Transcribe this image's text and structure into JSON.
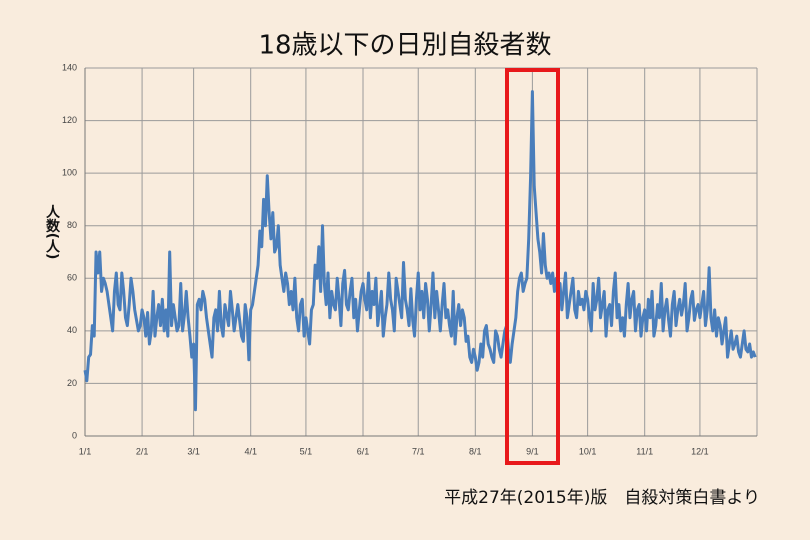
{
  "chart_data": {
    "type": "line",
    "title": "18歳以下の日別自殺者数",
    "y_label": "人数(人)",
    "source": "平成27年(2015年)版　自殺対策白書より",
    "xlim": [
      1,
      366
    ],
    "xticks": [
      {
        "value": 1,
        "label": "1/1"
      },
      {
        "value": 32,
        "label": "2/1"
      },
      {
        "value": 60,
        "label": "3/1"
      },
      {
        "value": 91,
        "label": "4/1"
      },
      {
        "value": 121,
        "label": "5/1"
      },
      {
        "value": 152,
        "label": "6/1"
      },
      {
        "value": 182,
        "label": "7/1"
      },
      {
        "value": 213,
        "label": "8/1"
      },
      {
        "value": 244,
        "label": "9/1"
      },
      {
        "value": 274,
        "label": "10/1"
      },
      {
        "value": 305,
        "label": "11/1"
      },
      {
        "value": 335,
        "label": "12/1"
      },
      {
        "value": 366,
        "label": ""
      }
    ],
    "ylim": [
      0,
      140
    ],
    "yticks": [
      0,
      20,
      40,
      60,
      80,
      100,
      120,
      140
    ],
    "grid": true,
    "x": [
      1,
      2,
      3,
      4,
      5,
      6,
      7,
      8,
      9,
      10,
      11,
      12,
      13,
      14,
      15,
      16,
      17,
      18,
      19,
      20,
      21,
      22,
      23,
      24,
      25,
      26,
      27,
      28,
      29,
      30,
      31,
      32,
      33,
      34,
      35,
      36,
      37,
      38,
      39,
      40,
      41,
      42,
      43,
      44,
      45,
      46,
      47,
      48,
      49,
      50,
      51,
      52,
      53,
      54,
      55,
      56,
      57,
      58,
      59,
      60,
      61,
      62,
      63,
      64,
      65,
      66,
      67,
      68,
      69,
      70,
      71,
      72,
      73,
      74,
      75,
      76,
      77,
      78,
      79,
      80,
      81,
      82,
      83,
      84,
      85,
      86,
      87,
      88,
      89,
      90,
      91,
      92,
      93,
      94,
      95,
      96,
      97,
      98,
      99,
      100,
      101,
      102,
      103,
      104,
      105,
      106,
      107,
      108,
      109,
      110,
      111,
      112,
      113,
      114,
      115,
      116,
      117,
      118,
      119,
      120,
      121,
      122,
      123,
      124,
      125,
      126,
      127,
      128,
      129,
      130,
      131,
      132,
      133,
      134,
      135,
      136,
      137,
      138,
      139,
      140,
      141,
      142,
      143,
      144,
      145,
      146,
      147,
      148,
      149,
      150,
      151,
      152,
      153,
      154,
      155,
      156,
      157,
      158,
      159,
      160,
      161,
      162,
      163,
      164,
      165,
      166,
      167,
      168,
      169,
      170,
      171,
      172,
      173,
      174,
      175,
      176,
      177,
      178,
      179,
      180,
      181,
      182,
      183,
      184,
      185,
      186,
      187,
      188,
      189,
      190,
      191,
      192,
      193,
      194,
      195,
      196,
      197,
      198,
      199,
      200,
      201,
      202,
      203,
      204,
      205,
      206,
      207,
      208,
      209,
      210,
      211,
      212,
      213,
      214,
      215,
      216,
      217,
      218,
      219,
      220,
      221,
      222,
      223,
      224,
      225,
      226,
      227,
      228,
      229,
      230,
      231,
      232,
      233,
      234,
      235,
      236,
      237,
      238,
      239,
      240,
      241,
      242,
      243,
      244,
      245,
      246,
      247,
      248,
      249,
      250,
      251,
      252,
      253,
      254,
      255,
      256,
      257,
      258,
      259,
      260,
      261,
      262,
      263,
      264,
      265,
      266,
      267,
      268,
      269,
      270,
      271,
      272,
      273,
      274,
      275,
      276,
      277,
      278,
      279,
      280,
      281,
      282,
      283,
      284,
      285,
      286,
      287,
      288,
      289,
      290,
      291,
      292,
      293,
      294,
      295,
      296,
      297,
      298,
      299,
      300,
      301,
      302,
      303,
      304,
      305,
      306,
      307,
      308,
      309,
      310,
      311,
      312,
      313,
      314,
      315,
      316,
      317,
      318,
      319,
      320,
      321,
      322,
      323,
      324,
      325,
      326,
      327,
      328,
      329,
      330,
      331,
      332,
      333,
      334,
      335,
      336,
      337,
      338,
      339,
      340,
      341,
      342,
      343,
      344,
      345,
      346,
      347,
      348,
      349,
      350,
      351,
      352,
      353,
      354,
      355,
      356,
      357,
      358,
      359,
      360,
      361,
      362,
      363,
      364,
      365
    ],
    "series": [
      {
        "color": "#4a7ebb",
        "values": [
          25,
          21,
          30,
          31,
          42,
          38,
          70,
          62,
          70,
          55,
          60,
          58,
          55,
          50,
          45,
          40,
          55,
          62,
          50,
          48,
          62,
          55,
          45,
          42,
          50,
          60,
          55,
          48,
          44,
          40,
          42,
          48,
          45,
          38,
          47,
          35,
          40,
          55,
          38,
          45,
          50,
          42,
          52,
          40,
          48,
          38,
          70,
          42,
          50,
          45,
          40,
          42,
          58,
          40,
          46,
          55,
          45,
          38,
          30,
          35,
          10,
          50,
          52,
          48,
          55,
          52,
          45,
          40,
          35,
          30,
          45,
          48,
          40,
          55,
          42,
          38,
          50,
          46,
          42,
          55,
          48,
          40,
          45,
          50,
          44,
          38,
          36,
          50,
          45,
          29,
          48,
          50,
          55,
          60,
          65,
          78,
          72,
          90,
          80,
          99,
          85,
          75,
          85,
          70,
          72,
          80,
          65,
          60,
          55,
          62,
          58,
          50,
          55,
          48,
          60,
          45,
          40,
          50,
          52,
          38,
          45,
          40,
          35,
          48,
          50,
          65,
          60,
          72,
          55,
          80,
          58,
          50,
          62,
          45,
          55,
          50,
          48,
          60,
          52,
          42,
          58,
          63,
          50,
          48,
          55,
          60,
          45,
          52,
          40,
          48,
          55,
          58,
          52,
          48,
          62,
          45,
          55,
          50,
          60,
          42,
          48,
          55,
          38,
          45,
          50,
          62,
          52,
          48,
          40,
          60,
          55,
          50,
          45,
          66,
          52,
          48,
          42,
          56,
          44,
          38,
          52,
          62,
          48,
          55,
          45,
          58,
          52,
          40,
          50,
          62,
          45,
          55,
          48,
          40,
          50,
          58,
          45,
          48,
          42,
          38,
          55,
          35,
          45,
          50,
          42,
          48,
          45,
          36,
          38,
          30,
          28,
          33,
          30,
          25,
          28,
          35,
          30,
          40,
          42,
          35,
          33,
          30,
          28,
          40,
          38,
          33,
          30,
          35,
          40,
          42,
          33,
          28,
          35,
          40,
          45,
          55,
          60,
          62,
          55,
          58,
          60,
          75,
          98,
          131,
          95,
          85,
          75,
          70,
          62,
          77,
          65,
          60,
          62,
          58,
          62,
          55,
          60,
          52,
          58,
          48,
          55,
          62,
          45,
          50,
          55,
          60,
          48,
          45,
          55,
          50,
          52,
          48,
          55,
          52,
          45,
          40,
          58,
          48,
          52,
          60,
          45,
          50,
          55,
          38,
          48,
          50,
          42,
          55,
          62,
          45,
          50,
          40,
          45,
          38,
          50,
          58,
          45,
          52,
          55,
          40,
          48,
          50,
          38,
          45,
          48,
          40,
          52,
          45,
          55,
          38,
          42,
          50,
          45,
          58,
          40,
          48,
          52,
          44,
          38,
          50,
          55,
          42,
          48,
          52,
          46,
          50,
          58,
          40,
          45,
          52,
          55,
          44,
          48,
          50,
          45,
          50,
          55,
          42,
          48,
          64,
          45,
          40,
          48,
          38,
          45,
          42,
          35,
          40,
          45,
          30,
          35,
          40,
          33,
          35,
          38,
          32,
          30,
          35,
          40,
          33,
          32,
          35,
          30,
          32,
          30
        ]
      }
    ]
  }
}
